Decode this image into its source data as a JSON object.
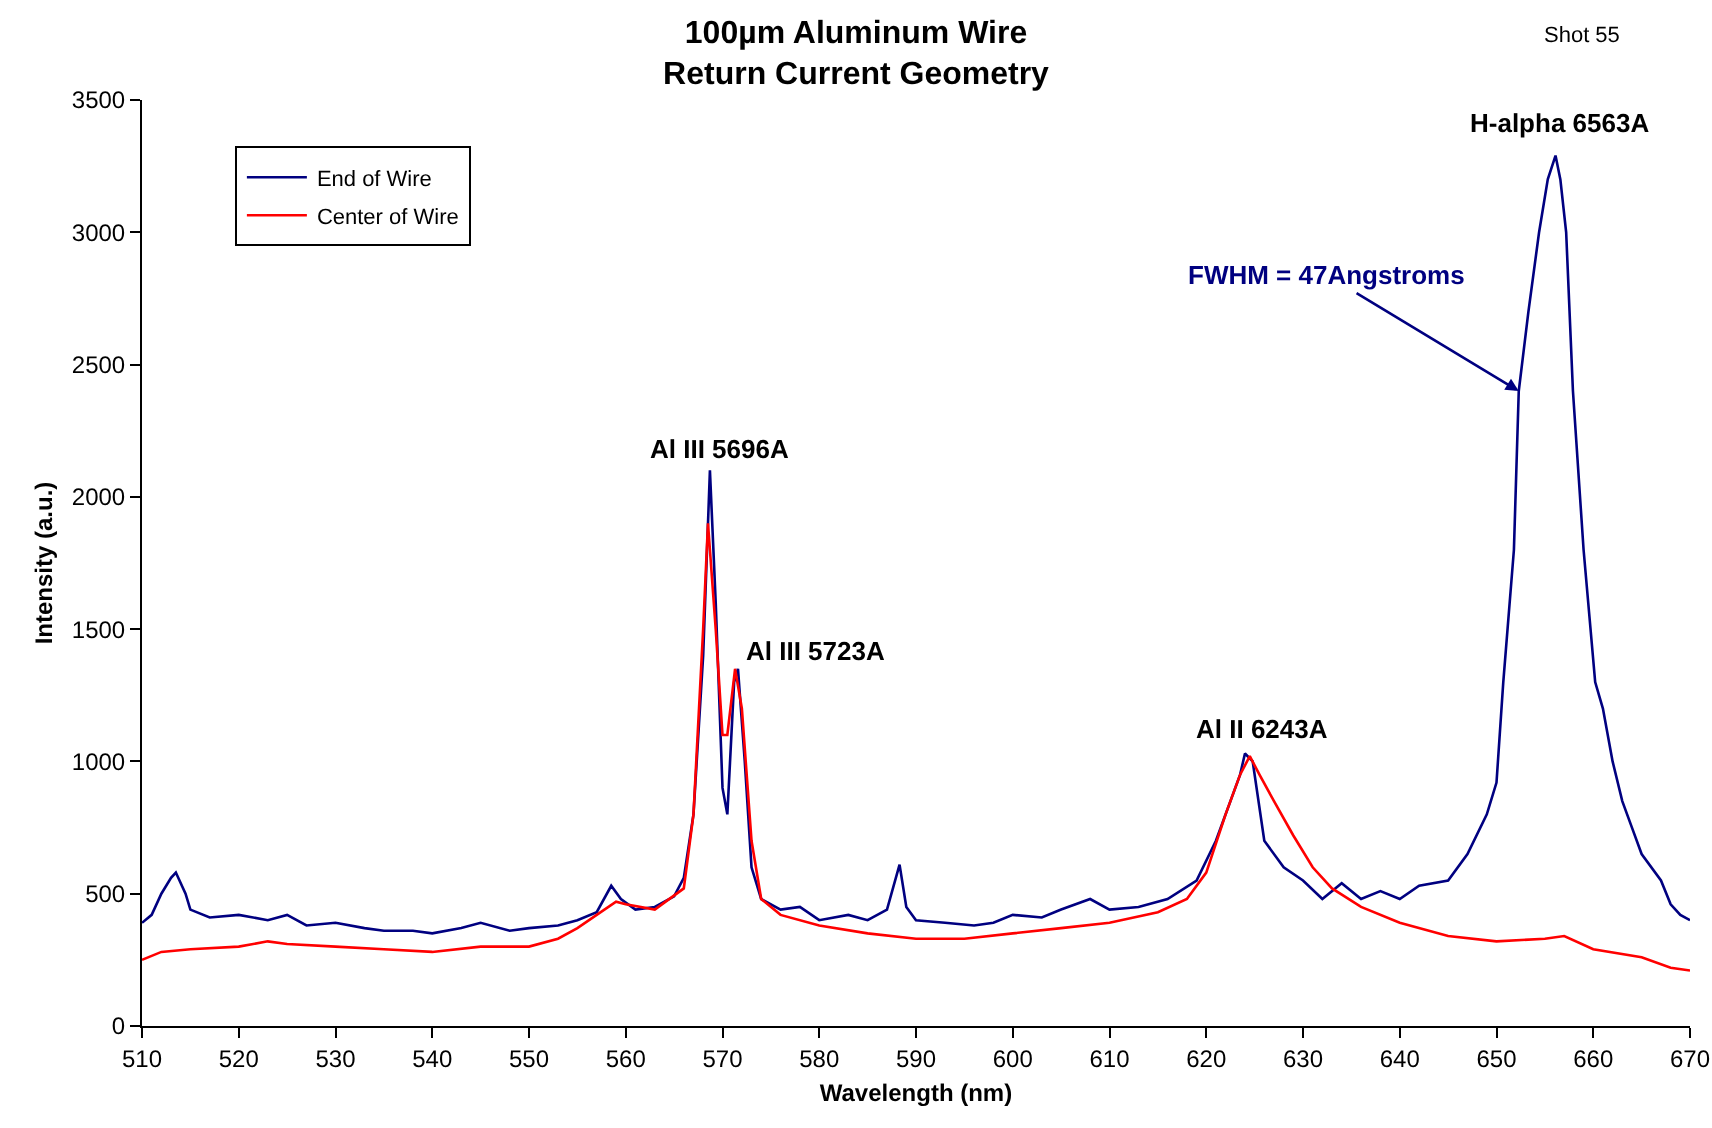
{
  "chart_data": {
    "type": "line",
    "title": "100µm Aluminum Wire\nReturn Current Geometry",
    "xlabel": "Wavelength (nm)",
    "ylabel": "Intensity (a.u.)",
    "xlim": [
      510,
      670
    ],
    "xticks": [
      510,
      520,
      530,
      540,
      550,
      560,
      570,
      580,
      590,
      600,
      610,
      620,
      630,
      640,
      650,
      660,
      670
    ],
    "ylim": [
      0,
      3500
    ],
    "yticks": [
      0,
      500,
      1000,
      1500,
      2000,
      2500,
      3000,
      3500
    ],
    "grid": false,
    "legend": "top left",
    "marker": "none",
    "line_style": "solid",
    "series": [
      {
        "name": "End of Wire",
        "color": "#000080",
        "x": [
          510,
          511,
          512,
          513,
          513.5,
          514.5,
          515,
          517,
          520,
          523,
          525,
          527,
          530,
          533,
          535,
          538,
          540,
          543,
          545,
          548,
          550,
          553,
          555,
          557,
          558.5,
          559.5,
          561,
          563,
          565,
          566,
          567,
          568,
          568.7,
          569.3,
          570,
          570.5,
          571.2,
          571.6,
          572.3,
          573,
          574,
          576,
          578,
          580,
          583,
          585,
          587,
          588.3,
          589,
          590,
          593,
          596,
          598,
          600,
          603,
          605,
          608,
          610,
          613,
          616,
          619,
          621,
          622.5,
          623.5,
          624,
          624.8,
          626,
          628,
          630,
          632,
          634,
          636,
          638,
          640,
          642,
          645,
          647,
          649,
          650,
          650.7,
          651.8,
          652.3,
          653.3,
          654.4,
          655.3,
          656.1,
          656.6,
          657.2,
          657.9,
          659,
          660.2,
          661,
          662,
          663,
          664,
          665,
          667,
          668,
          669,
          670
        ],
        "values": [
          390,
          420,
          500,
          560,
          580,
          500,
          440,
          410,
          420,
          400,
          420,
          380,
          390,
          370,
          360,
          360,
          350,
          370,
          390,
          360,
          370,
          380,
          400,
          430,
          530,
          480,
          440,
          450,
          490,
          560,
          800,
          1400,
          2100,
          1600,
          900,
          800,
          1300,
          1350,
          1000,
          600,
          480,
          440,
          450,
          400,
          420,
          400,
          440,
          610,
          450,
          400,
          390,
          380,
          390,
          420,
          410,
          440,
          480,
          440,
          450,
          480,
          550,
          700,
          850,
          950,
          1030,
          1000,
          700,
          600,
          550,
          480,
          540,
          480,
          510,
          480,
          530,
          550,
          650,
          800,
          920,
          1300,
          1800,
          2400,
          2700,
          3000,
          3200,
          3290,
          3200,
          3000,
          2400,
          1800,
          1300,
          1200,
          1000,
          850,
          750,
          650,
          550,
          460,
          420,
          400
        ]
      },
      {
        "name": "Center of Wire",
        "color": "#ff0000",
        "x": [
          510,
          512,
          515,
          520,
          523,
          525,
          530,
          535,
          540,
          545,
          550,
          553,
          555,
          557,
          559,
          560,
          563,
          566,
          567,
          568,
          568.5,
          569.3,
          570,
          570.5,
          571.3,
          572,
          573,
          574,
          576,
          580,
          585,
          590,
          595,
          600,
          605,
          610,
          615,
          618,
          620,
          622,
          623.5,
          624.5,
          625.5,
          627,
          629,
          631,
          633,
          636,
          640,
          645,
          650,
          655,
          657,
          660,
          665,
          668,
          670
        ],
        "values": [
          250,
          280,
          290,
          300,
          320,
          310,
          300,
          290,
          280,
          300,
          300,
          330,
          370,
          420,
          470,
          460,
          440,
          520,
          800,
          1500,
          1900,
          1500,
          1100,
          1100,
          1350,
          1200,
          700,
          480,
          420,
          380,
          350,
          330,
          330,
          350,
          370,
          390,
          430,
          480,
          580,
          800,
          950,
          1020,
          950,
          850,
          720,
          600,
          520,
          450,
          390,
          340,
          320,
          330,
          340,
          290,
          260,
          220,
          210
        ]
      }
    ],
    "annotations": [
      "Shot 55",
      {
        "text": "Al III 5696A",
        "x": 568.7,
        "y": 2100
      },
      {
        "text": "Al III 5723A",
        "x": 571.6,
        "y": 1350
      },
      {
        "text": "Al II 6243A",
        "x": 624,
        "y": 1030
      },
      {
        "text": "H-alpha 6563A",
        "x": 656.1,
        "y": 3290
      },
      {
        "text": "FWHM = 47Angstroms",
        "x": 652.3,
        "y": 2400
      }
    ]
  }
}
